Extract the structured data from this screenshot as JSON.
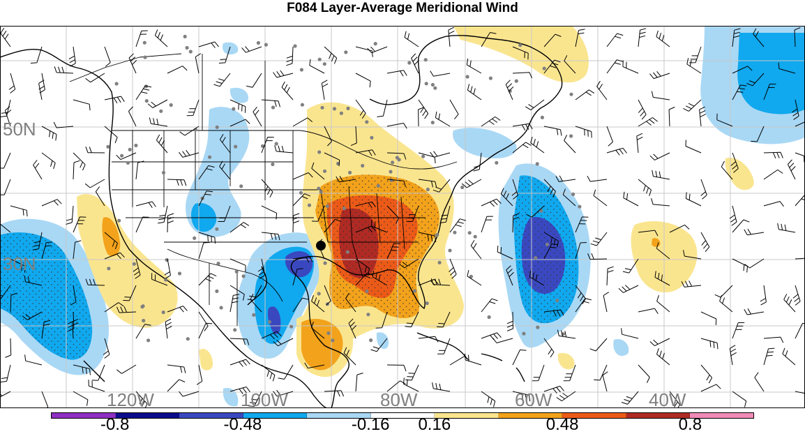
{
  "title": "F084 Layer-Average Meridional Wind",
  "map": {
    "lat_labels": [
      "50N",
      "30N"
    ],
    "lon_labels": [
      "120W",
      "100W",
      "80W",
      "60W",
      "40W"
    ],
    "field": "meridional wind anomaly",
    "colors": {
      "neg_strong": "#3a48c0",
      "neg_mid": "#10a8ee",
      "neg_weak": "#a9d8f5",
      "pos_weak": "#fae58f",
      "pos_mid": "#f2a21b",
      "pos_strong": "#ec5a18",
      "pos_max": "#b02a24"
    }
  },
  "colorbar": {
    "colors": [
      "#8c2fc2",
      "#0b0b8c",
      "#3a48c0",
      "#10a8ee",
      "#a9d8f5",
      "#ffffff",
      "#fae58f",
      "#f2a21b",
      "#ec5a18",
      "#b02a24",
      "#f08ab8"
    ],
    "labels": [
      "-0.8",
      "-0.48",
      "-0.16",
      "0.16",
      "0.48",
      "0.8"
    ]
  }
}
